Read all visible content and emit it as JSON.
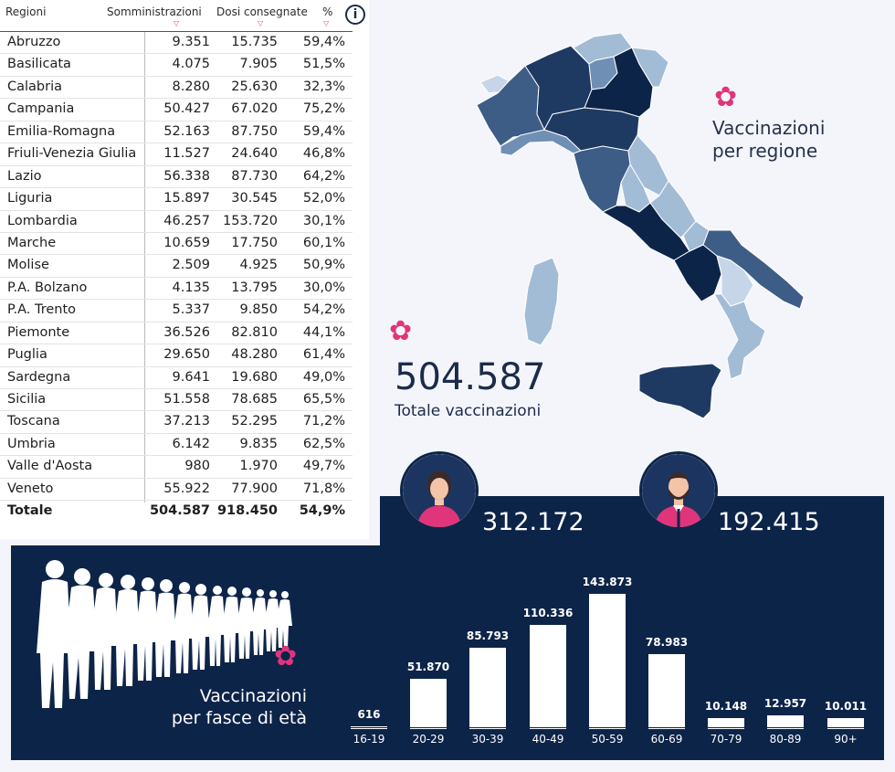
{
  "table": {
    "headers": {
      "region": "Regioni",
      "administered": "Somministrazioni",
      "delivered": "Dosi consegnate",
      "percent": "%"
    },
    "info_icon": "info-icon",
    "rows": [
      {
        "region": "Abruzzo",
        "administered": "9.351",
        "delivered": "15.735",
        "percent": "59,4%"
      },
      {
        "region": "Basilicata",
        "administered": "4.075",
        "delivered": "7.905",
        "percent": "51,5%"
      },
      {
        "region": "Calabria",
        "administered": "8.280",
        "delivered": "25.630",
        "percent": "32,3%"
      },
      {
        "region": "Campania",
        "administered": "50.427",
        "delivered": "67.020",
        "percent": "75,2%"
      },
      {
        "region": "Emilia-Romagna",
        "administered": "52.163",
        "delivered": "87.750",
        "percent": "59,4%"
      },
      {
        "region": "Friuli-Venezia Giulia",
        "administered": "11.527",
        "delivered": "24.640",
        "percent": "46,8%"
      },
      {
        "region": "Lazio",
        "administered": "56.338",
        "delivered": "87.730",
        "percent": "64,2%"
      },
      {
        "region": "Liguria",
        "administered": "15.897",
        "delivered": "30.545",
        "percent": "52,0%"
      },
      {
        "region": "Lombardia",
        "administered": "46.257",
        "delivered": "153.720",
        "percent": "30,1%"
      },
      {
        "region": "Marche",
        "administered": "10.659",
        "delivered": "17.750",
        "percent": "60,1%"
      },
      {
        "region": "Molise",
        "administered": "2.509",
        "delivered": "4.925",
        "percent": "50,9%"
      },
      {
        "region": "P.A. Bolzano",
        "administered": "4.135",
        "delivered": "13.795",
        "percent": "30,0%"
      },
      {
        "region": "P.A. Trento",
        "administered": "5.337",
        "delivered": "9.850",
        "percent": "54,2%"
      },
      {
        "region": "Piemonte",
        "administered": "36.526",
        "delivered": "82.810",
        "percent": "44,1%"
      },
      {
        "region": "Puglia",
        "administered": "29.650",
        "delivered": "48.280",
        "percent": "61,4%"
      },
      {
        "region": "Sardegna",
        "administered": "9.641",
        "delivered": "19.680",
        "percent": "49,0%"
      },
      {
        "region": "Sicilia",
        "administered": "51.558",
        "delivered": "78.685",
        "percent": "65,5%"
      },
      {
        "region": "Toscana",
        "administered": "37.213",
        "delivered": "52.295",
        "percent": "71,2%"
      },
      {
        "region": "Umbria",
        "administered": "6.142",
        "delivered": "9.835",
        "percent": "62,5%"
      },
      {
        "region": "Valle d'Aosta",
        "administered": "980",
        "delivered": "1.970",
        "percent": "49,7%"
      },
      {
        "region": "Veneto",
        "administered": "55.922",
        "delivered": "77.900",
        "percent": "71,8%"
      }
    ],
    "total": {
      "region": "Totale",
      "administered": "504.587",
      "delivered": "918.450",
      "percent": "54,9%"
    }
  },
  "map": {
    "title_line1": "Vaccinazioni",
    "title_line2": "per regione",
    "shades": [
      "#0d2449",
      "#1e3a62",
      "#3d5d87",
      "#6f8fb5",
      "#a3bcd6",
      "#c6d6e8"
    ]
  },
  "summary": {
    "total_value": "504.587",
    "total_label": "Totale vaccinazioni"
  },
  "gender": {
    "female_value": "312.172",
    "male_value": "192.415",
    "female_icon": "woman-avatar-icon",
    "male_icon": "man-avatar-icon"
  },
  "age": {
    "title_line1": "Vaccinazioni",
    "title_line2": "per fasce di età",
    "accent_color": "#e0357b",
    "bar_color": "#ffffff",
    "background": "#0d2449"
  },
  "chart_data": {
    "type": "bar",
    "categories": [
      "16-19",
      "20-29",
      "30-39",
      "40-49",
      "50-59",
      "60-69",
      "70-79",
      "80-89",
      "90+"
    ],
    "values": [
      616,
      51870,
      85793,
      110336,
      143873,
      78983,
      10148,
      12957,
      10011
    ],
    "value_labels": [
      "616",
      "51.870",
      "85.793",
      "110.336",
      "143.873",
      "78.983",
      "10.148",
      "12.957",
      "10.011"
    ],
    "title": "Vaccinazioni per fasce di età",
    "xlabel": "",
    "ylabel": "",
    "ylim": [
      0,
      143873
    ],
    "grid": false
  }
}
